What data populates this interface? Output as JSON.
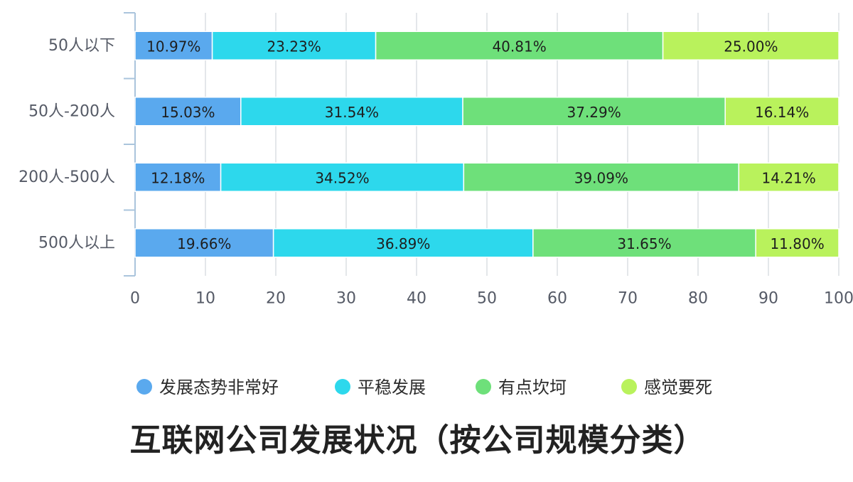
{
  "chart_data": {
    "type": "bar",
    "orientation": "horizontal",
    "stacked": true,
    "title": "互联网公司发展状况（按公司规模分类）",
    "categories": [
      "50人以下",
      "50人-200人",
      "200人-500人",
      "500人以上"
    ],
    "series": [
      {
        "name": "发展态势非常好",
        "color": "#5aa9ee",
        "values": [
          10.97,
          15.03,
          12.18,
          19.66
        ],
        "labels": [
          "10.97%",
          "15.03%",
          "12.18%",
          "19.66%"
        ]
      },
      {
        "name": "平稳发展",
        "color": "#2dd8ec",
        "values": [
          23.23,
          31.54,
          34.52,
          36.89
        ],
        "labels": [
          "23.23%",
          "31.54%",
          "34.52%",
          "36.89%"
        ]
      },
      {
        "name": "有点坎坷",
        "color": "#6ee07a",
        "values": [
          40.81,
          37.29,
          39.09,
          31.65
        ],
        "labels": [
          "40.81%",
          "37.29%",
          "39.09%",
          "31.65%"
        ]
      },
      {
        "name": "感觉要死",
        "color": "#b9f25c",
        "values": [
          25.0,
          16.14,
          14.21,
          11.8
        ],
        "labels": [
          "25.00%",
          "16.14%",
          "14.21%",
          "11.80%"
        ]
      }
    ],
    "xlim": [
      0,
      100
    ],
    "xticks": [
      0,
      10,
      20,
      30,
      40,
      50,
      60,
      70,
      80,
      90,
      100
    ],
    "grid": "vertical",
    "legend": "bottom"
  }
}
